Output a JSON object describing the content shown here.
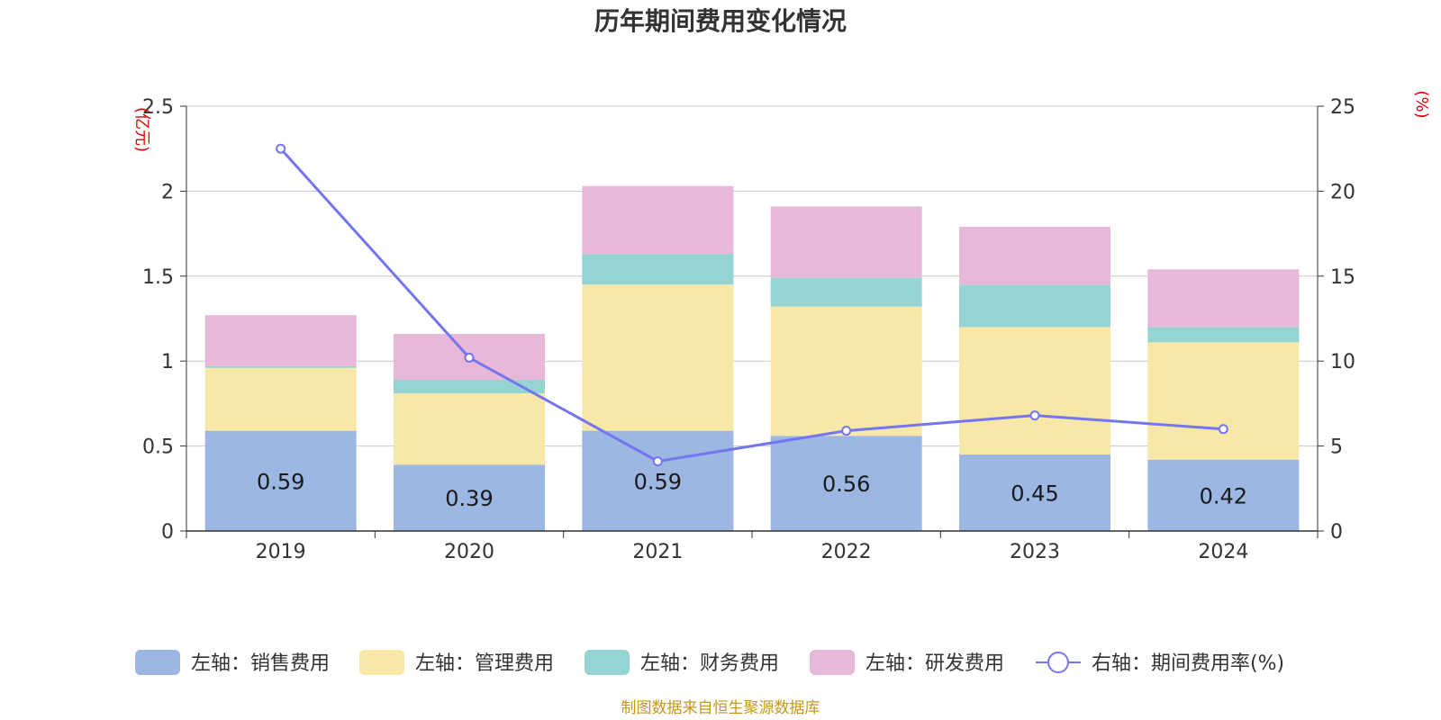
{
  "chart_data": {
    "type": "bar",
    "title": "历年期间费用变化情况",
    "categories": [
      "2019",
      "2020",
      "2021",
      "2022",
      "2023",
      "2024"
    ],
    "left_axis": {
      "unit": "(亿元)",
      "ylim": [
        0,
        2.5
      ],
      "ticks": [
        "0",
        "0.5",
        "1",
        "1.5",
        "2",
        "2.5"
      ],
      "tick_values": [
        0,
        0.5,
        1,
        1.5,
        2,
        2.5
      ]
    },
    "right_axis": {
      "unit": "(%)",
      "ylim": [
        0,
        25
      ],
      "ticks": [
        "0",
        "5",
        "10",
        "15",
        "20",
        "25"
      ],
      "tick_values": [
        0,
        5,
        10,
        15,
        20,
        25
      ]
    },
    "series": [
      {
        "name": "左轴：销售费用",
        "kind": "bar",
        "color": "#9bb7e2",
        "values": [
          0.59,
          0.39,
          0.59,
          0.56,
          0.45,
          0.42
        ],
        "labels": [
          "0.59",
          "0.39",
          "0.59",
          "0.56",
          "0.45",
          "0.42"
        ]
      },
      {
        "name": "左轴：管理费用",
        "kind": "bar",
        "color": "#f8e8a8",
        "values": [
          0.37,
          0.42,
          0.86,
          0.76,
          0.75,
          0.69
        ]
      },
      {
        "name": "左轴：财务费用",
        "kind": "bar",
        "color": "#96d4d4",
        "values": [
          0.01,
          0.08,
          0.18,
          0.17,
          0.25,
          0.09
        ]
      },
      {
        "name": "左轴：研发费用",
        "kind": "bar",
        "color": "#e8b8d8",
        "values": [
          0.3,
          0.27,
          0.4,
          0.42,
          0.34,
          0.34
        ]
      },
      {
        "name": "右轴：期间费用率(%)",
        "kind": "line",
        "axis": "right",
        "color": "#7575ef",
        "values": [
          22.5,
          10.2,
          4.1,
          5.9,
          6.8,
          6.0
        ]
      }
    ],
    "grid": true,
    "legend_position": "bottom"
  },
  "source_text": "制图数据来自恒生聚源数据库"
}
